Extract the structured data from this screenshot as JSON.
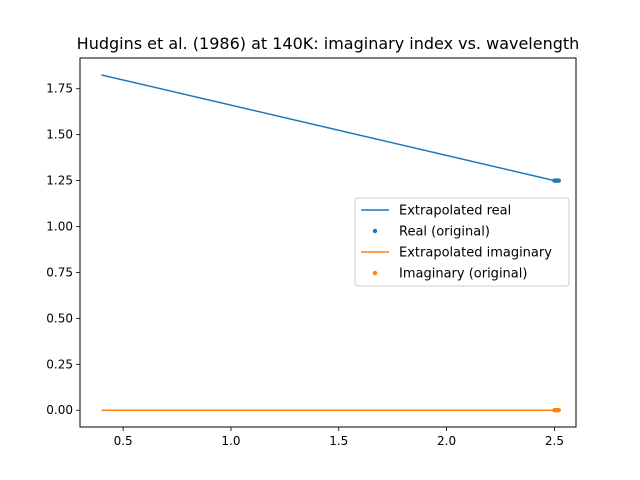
{
  "chart_data": {
    "type": "line",
    "title": "Hudgins et al. (1986) at 140K: imaginary index vs. wavelength",
    "xlabel": "",
    "ylabel": "",
    "xlim": [
      0.3,
      2.6
    ],
    "ylim": [
      -0.0913,
      1.9173
    ],
    "xticks": [
      {
        "value": 0.5,
        "label": "0.5"
      },
      {
        "value": 1.0,
        "label": "1.0"
      },
      {
        "value": 1.5,
        "label": "1.5"
      },
      {
        "value": 2.0,
        "label": "2.0"
      },
      {
        "value": 2.5,
        "label": "2.5"
      }
    ],
    "yticks": [
      {
        "value": 0.0,
        "label": "0.00"
      },
      {
        "value": 0.25,
        "label": "0.25"
      },
      {
        "value": 0.5,
        "label": "0.50"
      },
      {
        "value": 0.75,
        "label": "0.75"
      },
      {
        "value": 1.0,
        "label": "1.00"
      },
      {
        "value": 1.25,
        "label": "1.25"
      },
      {
        "value": 1.5,
        "label": "1.50"
      },
      {
        "value": 1.75,
        "label": "1.75"
      }
    ],
    "grid": false,
    "legend_placement": "center-right",
    "series": [
      {
        "name": "Extrapolated real",
        "kind": "line",
        "color": "#1f77b4",
        "x": [
          0.4,
          2.5
        ],
        "y": [
          1.825,
          1.25
        ]
      },
      {
        "name": "Real (original)",
        "kind": "scatter",
        "color": "#1f77b4",
        "x": [
          2.5,
          2.505,
          2.51,
          2.515,
          2.52
        ],
        "y": [
          1.25,
          1.25,
          1.25,
          1.25,
          1.25
        ]
      },
      {
        "name": "Extrapolated imaginary",
        "kind": "line",
        "color": "#ff7f0e",
        "x": [
          0.4,
          2.5
        ],
        "y": [
          0.0,
          0.0
        ]
      },
      {
        "name": "Imaginary (original)",
        "kind": "scatter",
        "color": "#ff7f0e",
        "x": [
          2.5,
          2.505,
          2.51,
          2.515,
          2.52
        ],
        "y": [
          0.0,
          0.0,
          0.0,
          0.0,
          0.0
        ]
      }
    ]
  }
}
